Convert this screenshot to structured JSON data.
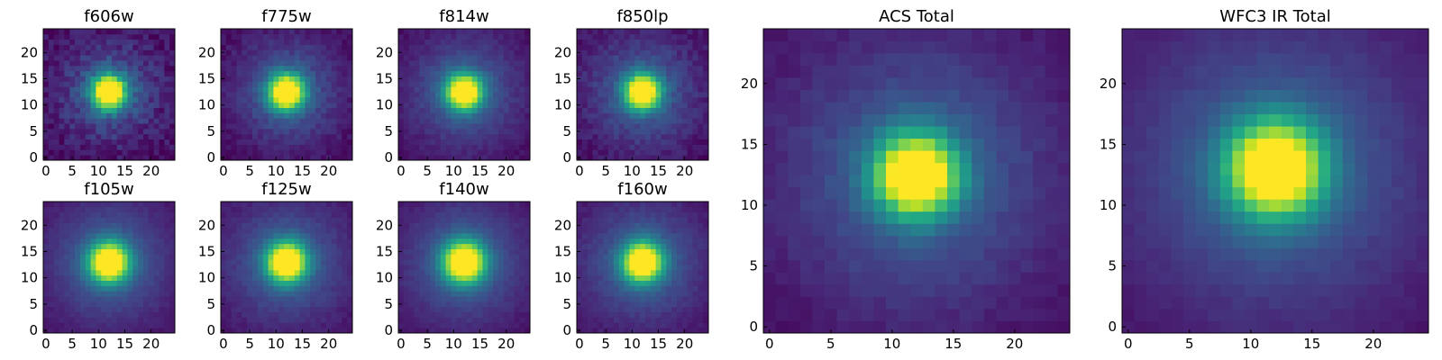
{
  "chart_data": [
    {
      "type": "heatmap",
      "title": "f606w",
      "x_ticks": [
        "0",
        "5",
        "10",
        "15",
        "20"
      ],
      "y_ticks": [
        "0",
        "5",
        "10",
        "15",
        "20"
      ],
      "grid_size": 25,
      "xlim": [
        0,
        24
      ],
      "ylim": [
        0,
        24
      ],
      "center": [
        12,
        12.5
      ],
      "peak_radius": 2.2,
      "halo_radius": 6.5,
      "noise": 0.14,
      "colormap": "viridis"
    },
    {
      "type": "heatmap",
      "title": "f775w",
      "x_ticks": [
        "0",
        "5",
        "10",
        "15",
        "20"
      ],
      "y_ticks": [
        "0",
        "5",
        "10",
        "15",
        "20"
      ],
      "grid_size": 25,
      "xlim": [
        0,
        24
      ],
      "ylim": [
        0,
        24
      ],
      "center": [
        12,
        12.5
      ],
      "peak_radius": 2.3,
      "halo_radius": 7,
      "noise": 0.08,
      "colormap": "viridis"
    },
    {
      "type": "heatmap",
      "title": "f814w",
      "x_ticks": [
        "0",
        "5",
        "10",
        "15",
        "20"
      ],
      "y_ticks": [
        "0",
        "5",
        "10",
        "15",
        "20"
      ],
      "grid_size": 25,
      "xlim": [
        0,
        24
      ],
      "ylim": [
        0,
        24
      ],
      "center": [
        12,
        12.5
      ],
      "peak_radius": 2.3,
      "halo_radius": 7.5,
      "noise": 0.06,
      "colormap": "viridis"
    },
    {
      "type": "heatmap",
      "title": "f850lp",
      "x_ticks": [
        "0",
        "5",
        "10",
        "15",
        "20"
      ],
      "y_ticks": [
        "0",
        "5",
        "10",
        "15",
        "20"
      ],
      "grid_size": 25,
      "xlim": [
        0,
        24
      ],
      "ylim": [
        0,
        24
      ],
      "center": [
        12,
        12.5
      ],
      "peak_radius": 2.3,
      "halo_radius": 7.5,
      "noise": 0.09,
      "colormap": "viridis"
    },
    {
      "type": "heatmap",
      "title": "f105w",
      "x_ticks": [
        "0",
        "5",
        "10",
        "15",
        "20"
      ],
      "y_ticks": [
        "0",
        "5",
        "10",
        "15",
        "20"
      ],
      "grid_size": 25,
      "xlim": [
        0,
        24
      ],
      "ylim": [
        0,
        24
      ],
      "center": [
        12,
        13
      ],
      "peak_radius": 2.6,
      "halo_radius": 8.5,
      "noise": 0.04,
      "colormap": "viridis"
    },
    {
      "type": "heatmap",
      "title": "f125w",
      "x_ticks": [
        "0",
        "5",
        "10",
        "15",
        "20"
      ],
      "y_ticks": [
        "0",
        "5",
        "10",
        "15",
        "20"
      ],
      "grid_size": 25,
      "xlim": [
        0,
        24
      ],
      "ylim": [
        0,
        24
      ],
      "center": [
        12,
        13
      ],
      "peak_radius": 2.6,
      "halo_radius": 8.5,
      "noise": 0.05,
      "colormap": "viridis"
    },
    {
      "type": "heatmap",
      "title": "f140w",
      "x_ticks": [
        "0",
        "5",
        "10",
        "15",
        "20"
      ],
      "y_ticks": [
        "0",
        "5",
        "10",
        "15",
        "20"
      ],
      "grid_size": 25,
      "xlim": [
        0,
        24
      ],
      "ylim": [
        0,
        24
      ],
      "center": [
        12,
        13
      ],
      "peak_radius": 2.7,
      "halo_radius": 8.5,
      "noise": 0.04,
      "colormap": "viridis"
    },
    {
      "type": "heatmap",
      "title": "f160w",
      "x_ticks": [
        "0",
        "5",
        "10",
        "15",
        "20"
      ],
      "y_ticks": [
        "0",
        "5",
        "10",
        "15",
        "20"
      ],
      "grid_size": 25,
      "xlim": [
        0,
        24
      ],
      "ylim": [
        0,
        24
      ],
      "center": [
        12,
        13
      ],
      "peak_radius": 2.6,
      "halo_radius": 8.5,
      "noise": 0.05,
      "colormap": "viridis"
    },
    {
      "type": "heatmap",
      "title": "ACS Total",
      "x_ticks": [
        "0",
        "5",
        "10",
        "15",
        "20"
      ],
      "y_ticks": [
        "0",
        "5",
        "10",
        "15",
        "20"
      ],
      "grid_size": 25,
      "xlim": [
        0,
        24
      ],
      "ylim": [
        0,
        24
      ],
      "center": [
        12,
        12.5
      ],
      "peak_radius": 2.3,
      "halo_radius": 8,
      "noise": 0.05,
      "colormap": "viridis"
    },
    {
      "type": "heatmap",
      "title": "WFC3 IR Total",
      "x_ticks": [
        "0",
        "5",
        "10",
        "15",
        "20"
      ],
      "y_ticks": [
        "0",
        "5",
        "10",
        "15",
        "20"
      ],
      "grid_size": 25,
      "xlim": [
        0,
        24
      ],
      "ylim": [
        0,
        24
      ],
      "center": [
        12,
        13
      ],
      "peak_radius": 2.7,
      "halo_radius": 9,
      "noise": 0.03,
      "colormap": "viridis"
    }
  ]
}
